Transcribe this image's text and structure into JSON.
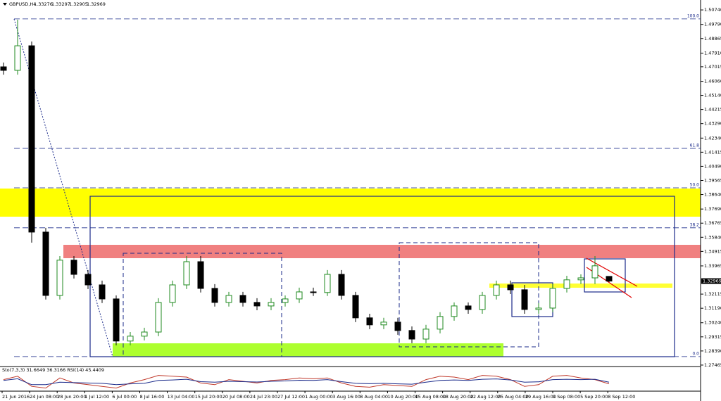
{
  "chart_data": {
    "type": "candlestick",
    "title": "GBPUSD,H4",
    "ylim": [
      1.2737,
      1.5139
    ],
    "yticks": [
      {
        "value": 1.5074,
        "label": "1.50740"
      },
      {
        "value": 1.4979,
        "label": "1.49790"
      },
      1.48865,
      {
        "value": 1.4791,
        "label": "1.47910"
      },
      1.47015,
      {
        "value": 1.4606,
        "label": "1.46060"
      },
      {
        "value": 1.4514,
        "label": "1.45140"
      },
      1.44215,
      {
        "value": 1.4329,
        "label": "1.43290"
      },
      {
        "value": 1.4234,
        "label": "1.42340"
      },
      1.41415,
      {
        "value": 1.4049,
        "label": "1.40490"
      },
      1.39565,
      {
        "value": 1.3864,
        "label": "1.38640"
      },
      {
        "value": 1.3769,
        "label": "1.37690"
      },
      1.36765,
      {
        "value": 1.3584,
        "label": "1.35840"
      },
      1.34915,
      1.33965,
      1.32115,
      {
        "value": 1.3119,
        "label": "1.31190"
      },
      {
        "value": 1.3024,
        "label": "1.30240"
      },
      1.29315,
      {
        "value": 1.2839,
        "label": "1.28390"
      },
      1.27465
    ],
    "x_labels": [
      "21 Jun 2016",
      "24 Jun 08:00",
      "28 Jun 20:00",
      "1 Jul 12:00",
      "6 Jul 00:00",
      "8 Jul 16:00",
      "13 Jul 04:00",
      "15 Jul 20:00",
      "20 Jul 08:00",
      "24 Jul 23:00",
      "27 Jul 12:00",
      "1 Aug 00:00",
      "3 Aug 16:00",
      "8 Aug 04:00",
      "10 Aug 20:00",
      "15 Aug 08:00",
      "18 Aug 20:00",
      "22 Aug 12:00",
      "25 Aug 04:00",
      "29 Aug 16:00",
      "1 Sep 08:00",
      "5 Sep 20:00",
      "8 Sep 12:00"
    ],
    "bull_color": "#1f8a1f",
    "bear_color": "#000000",
    "open": [
      1.4701,
      1.4678,
      1.4839,
      1.3618,
      1.3203,
      1.3434,
      1.3341,
      1.3272,
      1.318,
      1.2904,
      1.2936,
      1.2963,
      1.3157,
      1.3272,
      1.3424,
      1.3249,
      1.3157,
      1.3203,
      1.3157,
      1.3134,
      1.3157,
      1.318,
      1.3226,
      1.3222,
      1.3341,
      1.3203,
      1.3056,
      1.301,
      1.3028,
      1.2973,
      1.2917,
      1.2982,
      1.3065,
      1.3134,
      1.3111,
      1.3203,
      1.3272,
      1.324,
      1.3111,
      1.312,
      1.3249,
      1.3305,
      1.3318,
      1.33276
    ],
    "high": [
      1.4729,
      1.501,
      1.4867,
      1.3646,
      1.3461,
      1.3461,
      1.3369,
      1.33,
      1.3203,
      1.2963,
      1.2991,
      1.3185,
      1.33,
      1.3461,
      1.3461,
      1.3277,
      1.3226,
      1.3226,
      1.3185,
      1.3185,
      1.3203,
      1.3254,
      1.3254,
      1.3369,
      1.3369,
      1.3226,
      1.3083,
      1.3056,
      1.3056,
      1.3,
      1.301,
      1.3093,
      1.3157,
      1.3157,
      1.3226,
      1.33,
      1.33,
      1.3272,
      1.3153,
      1.3277,
      1.3332,
      1.3341,
      1.3461,
      1.33297
    ],
    "low": [
      1.465,
      1.465,
      1.3549,
      1.3176,
      1.3176,
      1.3314,
      1.3245,
      1.3153,
      1.2876,
      1.2876,
      1.2908,
      1.2936,
      1.313,
      1.3245,
      1.3222,
      1.313,
      1.313,
      1.313,
      1.3106,
      1.3106,
      1.313,
      1.3153,
      1.3199,
      1.3199,
      1.3176,
      1.3028,
      1.2982,
      1.2982,
      1.2945,
      1.289,
      1.289,
      1.2954,
      1.3037,
      1.3083,
      1.3083,
      1.3176,
      1.3212,
      1.3083,
      1.3083,
      1.3093,
      1.3222,
      1.3277,
      1.3277,
      1.32905
    ],
    "close": [
      1.4678,
      1.4839,
      1.3618,
      1.3203,
      1.3434,
      1.3341,
      1.3272,
      1.318,
      1.2904,
      1.2936,
      1.2963,
      1.3157,
      1.3272,
      1.3424,
      1.3249,
      1.3157,
      1.3203,
      1.3157,
      1.3134,
      1.3157,
      1.318,
      1.3226,
      1.3222,
      1.3341,
      1.3203,
      1.3056,
      1.301,
      1.3028,
      1.2973,
      1.2917,
      1.2982,
      1.3065,
      1.3134,
      1.3111,
      1.3203,
      1.3272,
      1.324,
      1.3111,
      1.312,
      1.3249,
      1.3305,
      1.3318,
      1.3397,
      1.32969
    ],
    "fib_levels": [
      {
        "value": 1.5015,
        "label": "100.0"
      },
      {
        "value": 1.4167,
        "label": "61.8"
      },
      {
        "value": 1.3908,
        "label": "50.0"
      },
      {
        "value": 1.3646,
        "label": "38.2"
      },
      {
        "value": 1.2802,
        "label": "0.0"
      }
    ],
    "indicator": {
      "label": "Sto(7,3,3) 31.6649 36.3166 RSI(14) 45.4409",
      "ylim": [
        0,
        100
      ],
      "series": [
        {
          "color": "#c0392b",
          "values": [
            60,
            80,
            20,
            10,
            70,
            40,
            30,
            20,
            10,
            40,
            60,
            85,
            80,
            75,
            40,
            30,
            60,
            50,
            40,
            55,
            60,
            70,
            65,
            70,
            40,
            20,
            15,
            30,
            25,
            20,
            60,
            80,
            75,
            60,
            85,
            80,
            60,
            20,
            30,
            80,
            85,
            70,
            60,
            35
          ]
        },
        {
          "color": "#1a2a8a",
          "values": [
            55,
            65,
            30,
            30,
            45,
            42,
            40,
            38,
            30,
            35,
            38,
            55,
            58,
            62,
            48,
            45,
            50,
            48,
            46,
            50,
            52,
            56,
            55,
            60,
            48,
            38,
            36,
            38,
            35,
            33,
            45,
            55,
            58,
            55,
            62,
            64,
            58,
            45,
            47,
            60,
            62,
            60,
            62,
            45
          ]
        }
      ]
    }
  }
}
